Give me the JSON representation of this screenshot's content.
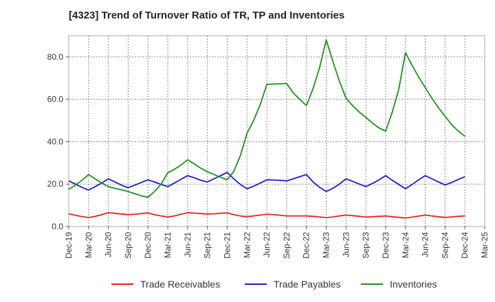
{
  "chart_data": {
    "type": "line",
    "title": "[4323]  Trend of Turnover Ratio of TR, TP and Inventories",
    "xlabel": "",
    "ylabel": "",
    "ylim": [
      0,
      90
    ],
    "y_ticks": [
      "0.0",
      "20.0",
      "40.0",
      "60.0",
      "80.0"
    ],
    "x_tick_labels": [
      "Dec-19",
      "Mar-20",
      "Jun-20",
      "Sep-20",
      "Dec-20",
      "Mar-21",
      "Jun-21",
      "Sep-21",
      "Dec-21",
      "Mar-22",
      "Jun-22",
      "Sep-22",
      "Dec-22",
      "Mar-23",
      "Jun-23",
      "Sep-23",
      "Dec-23",
      "Mar-24",
      "Jun-24",
      "Sep-24",
      "Dec-24",
      "Mar-25"
    ],
    "x": [
      "Dec-19",
      "Jan-20",
      "Feb-20",
      "Mar-20",
      "Apr-20",
      "May-20",
      "Jun-20",
      "Jul-20",
      "Aug-20",
      "Sep-20",
      "Oct-20",
      "Nov-20",
      "Dec-20",
      "Jan-21",
      "Feb-21",
      "Mar-21",
      "Apr-21",
      "May-21",
      "Jun-21",
      "Jul-21",
      "Aug-21",
      "Sep-21",
      "Oct-21",
      "Nov-21",
      "Dec-21",
      "Jan-22",
      "Feb-22",
      "Mar-22",
      "Apr-22",
      "May-22",
      "Jun-22",
      "Jul-22",
      "Aug-22",
      "Sep-22",
      "Oct-22",
      "Nov-22",
      "Dec-22",
      "Jan-23",
      "Feb-23",
      "Mar-23",
      "Apr-23",
      "May-23",
      "Jun-23",
      "Jul-23",
      "Aug-23",
      "Sep-23",
      "Oct-23",
      "Nov-23",
      "Dec-23",
      "Jan-24",
      "Feb-24",
      "Mar-24",
      "Apr-24",
      "May-24",
      "Jun-24",
      "Jul-24",
      "Aug-24",
      "Sep-24",
      "Oct-24",
      "Nov-24",
      "Dec-24"
    ],
    "grid": true,
    "legend_position": "bottom",
    "series": [
      {
        "name": "Trade Receivables",
        "color": "#e8211b",
        "values": [
          6.0,
          5.3,
          4.7,
          4.2,
          4.8,
          5.6,
          6.5,
          6.2,
          5.9,
          5.6,
          5.8,
          6.1,
          6.4,
          5.6,
          5.0,
          4.5,
          5.0,
          5.8,
          6.5,
          6.3,
          6.1,
          5.9,
          6.0,
          6.2,
          6.4,
          5.6,
          5.0,
          4.6,
          5.0,
          5.4,
          5.8,
          5.6,
          5.3,
          5.0,
          5.0,
          5.0,
          5.0,
          4.8,
          4.5,
          4.2,
          4.5,
          5.0,
          5.4,
          5.1,
          4.8,
          4.5,
          4.6,
          4.8,
          5.0,
          4.6,
          4.3,
          4.0,
          4.4,
          4.9,
          5.4,
          5.0,
          4.6,
          4.3,
          4.5,
          4.8,
          5.0
        ]
      },
      {
        "name": "Trade Payables",
        "color": "#1a1acc",
        "values": [
          21.5,
          20.0,
          18.5,
          17.2,
          18.8,
          20.5,
          22.5,
          21.0,
          19.5,
          18.3,
          19.5,
          20.8,
          22.0,
          21.0,
          19.8,
          18.8,
          20.5,
          22.3,
          24.0,
          23.0,
          21.8,
          21.0,
          22.5,
          24.0,
          25.5,
          22.5,
          19.8,
          17.8,
          19.0,
          20.5,
          22.0,
          21.9,
          21.8,
          21.5,
          22.5,
          23.5,
          24.5,
          21.0,
          18.5,
          16.5,
          18.0,
          20.0,
          22.5,
          21.3,
          20.0,
          18.8,
          20.3,
          22.0,
          24.0,
          21.8,
          19.8,
          17.8,
          19.8,
          22.0,
          24.0,
          22.5,
          21.0,
          19.6,
          20.8,
          22.2,
          23.5
        ]
      },
      {
        "name": "Inventories",
        "color": "#228b22",
        "values": [
          17.5,
          19.5,
          21.8,
          24.5,
          22.5,
          20.5,
          18.8,
          18.0,
          17.3,
          16.5,
          15.5,
          14.5,
          13.8,
          16.5,
          20.0,
          25.3,
          27.0,
          29.0,
          31.5,
          29.5,
          27.5,
          25.8,
          24.5,
          23.2,
          22.0,
          26.0,
          33.5,
          44.0,
          50.0,
          57.5,
          67.0,
          67.2,
          67.3,
          67.5,
          63.0,
          60.0,
          57.0,
          65.0,
          75.0,
          88.0,
          78.0,
          68.5,
          60.5,
          57.0,
          54.0,
          51.5,
          48.8,
          46.5,
          45.0,
          54.0,
          65.0,
          82.0,
          76.0,
          70.5,
          65.5,
          60.5,
          56.0,
          52.0,
          48.0,
          45.0,
          42.5
        ]
      }
    ]
  }
}
